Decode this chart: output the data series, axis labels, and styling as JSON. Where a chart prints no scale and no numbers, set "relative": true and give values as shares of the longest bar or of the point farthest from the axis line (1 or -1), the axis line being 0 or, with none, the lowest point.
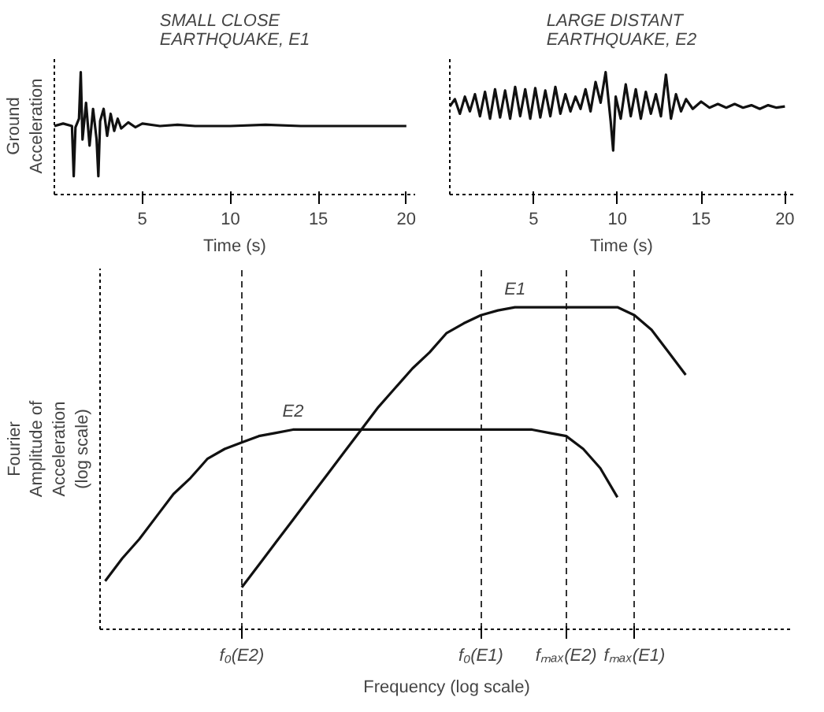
{
  "chart_data": [
    {
      "type": "line",
      "title": "SMALL CLOSE\nEARTHQUAKE, E1",
      "xlabel": "Time (s)",
      "ylabel": "Ground\nAcceleration",
      "relative": true,
      "tick_labels": "x",
      "xlim": [
        0,
        20.5
      ],
      "xticks": [
        5,
        10,
        15,
        20
      ],
      "grid": false,
      "series": [
        {
          "color": "#111111",
          "x": [
            0,
            0.5,
            1.0,
            1.1,
            1.2,
            1.4,
            1.5,
            1.6,
            1.8,
            2.0,
            2.2,
            2.4,
            2.5,
            2.6,
            2.8,
            3.0,
            3.2,
            3.4,
            3.6,
            3.8,
            4.2,
            4.6,
            5,
            6,
            7,
            8,
            10,
            12,
            14,
            16,
            18,
            20
          ],
          "values": [
            0.56,
            0.58,
            0.56,
            0.15,
            0.55,
            0.62,
            1.0,
            0.45,
            0.75,
            0.4,
            0.7,
            0.45,
            0.15,
            0.6,
            0.7,
            0.48,
            0.66,
            0.52,
            0.62,
            0.54,
            0.59,
            0.55,
            0.58,
            0.56,
            0.57,
            0.56,
            0.56,
            0.57,
            0.56,
            0.56,
            0.56,
            0.56
          ]
        }
      ]
    },
    {
      "type": "line",
      "title": "LARGE DISTANT\nEARTHQUAKE, E2",
      "xlabel": "Time (s)",
      "relative": true,
      "tick_labels": "x",
      "xlim": [
        0,
        20.5
      ],
      "xticks": [
        5,
        10,
        15,
        20
      ],
      "grid": false,
      "series": [
        {
          "color": "#111111",
          "x": [
            0,
            0.3,
            0.6,
            0.9,
            1.2,
            1.5,
            1.8,
            2.1,
            2.4,
            2.7,
            3.0,
            3.3,
            3.6,
            3.9,
            4.2,
            4.5,
            4.8,
            5.1,
            5.4,
            5.7,
            6.0,
            6.3,
            6.6,
            6.9,
            7.2,
            7.5,
            7.8,
            8.1,
            8.4,
            8.7,
            9.0,
            9.3,
            9.6,
            9.75,
            9.9,
            10.2,
            10.5,
            10.8,
            11.1,
            11.4,
            11.7,
            12.0,
            12.3,
            12.6,
            12.9,
            13.2,
            13.5,
            13.8,
            14.1,
            14.5,
            15,
            15.5,
            16,
            16.5,
            17,
            17.5,
            18,
            18.5,
            19,
            19.5,
            20
          ],
          "values": [
            0.72,
            0.78,
            0.66,
            0.8,
            0.68,
            0.82,
            0.64,
            0.84,
            0.62,
            0.86,
            0.63,
            0.85,
            0.62,
            0.88,
            0.64,
            0.86,
            0.62,
            0.87,
            0.63,
            0.85,
            0.64,
            0.88,
            0.66,
            0.82,
            0.68,
            0.8,
            0.7,
            0.86,
            0.68,
            0.92,
            0.75,
            1.0,
            0.6,
            0.36,
            0.8,
            0.62,
            0.9,
            0.64,
            0.86,
            0.62,
            0.84,
            0.66,
            0.82,
            0.64,
            0.98,
            0.62,
            0.82,
            0.68,
            0.78,
            0.7,
            0.76,
            0.71,
            0.74,
            0.71,
            0.74,
            0.71,
            0.73,
            0.7,
            0.73,
            0.71,
            0.72
          ]
        }
      ]
    },
    {
      "type": "line",
      "xlabel": "Frequency (log scale)",
      "ylabel": "Fourier\nAmplitude of\nAcceleration\n(log scale)",
      "relative": true,
      "tick_labels": "x",
      "grid": "x",
      "line_style": "solid",
      "categories": [
        null,
        null,
        null,
        null,
        null,
        null,
        null,
        null,
        "f₀(E2)",
        null,
        null,
        null,
        null,
        null,
        null,
        null,
        null,
        null,
        null,
        null,
        null,
        null,
        "f₀(E1)",
        null,
        null,
        null,
        null,
        "fₘₐₓ(E2)",
        null,
        null,
        null,
        "fₘₐₓ(E1)",
        null,
        null,
        null,
        null,
        null,
        null,
        null,
        null,
        null
      ],
      "series": [
        {
          "name": "E1",
          "color": "#111111",
          "values": [
            null,
            null,
            null,
            null,
            null,
            null,
            null,
            null,
            0.13,
            0.2,
            0.27,
            0.34,
            0.41,
            0.48,
            0.55,
            0.62,
            0.69,
            0.75,
            0.81,
            0.86,
            0.92,
            0.95,
            0.975,
            0.99,
            1.0,
            1.0,
            1.0,
            1.0,
            1.0,
            1.0,
            1.0,
            0.975,
            0.93,
            0.86,
            0.79,
            null,
            null,
            null,
            null,
            null,
            null
          ]
        },
        {
          "name": "E2",
          "color": "#111111",
          "values": [
            0.15,
            0.22,
            0.28,
            0.35,
            0.42,
            0.47,
            0.53,
            0.56,
            0.58,
            0.6,
            0.61,
            0.62,
            0.62,
            0.62,
            0.62,
            0.62,
            0.62,
            0.62,
            0.62,
            0.62,
            0.62,
            0.62,
            0.62,
            0.62,
            0.62,
            0.62,
            0.61,
            0.6,
            0.56,
            0.5,
            0.41,
            null,
            null,
            null,
            null,
            null,
            null,
            null,
            null,
            null,
            null
          ]
        }
      ]
    }
  ]
}
